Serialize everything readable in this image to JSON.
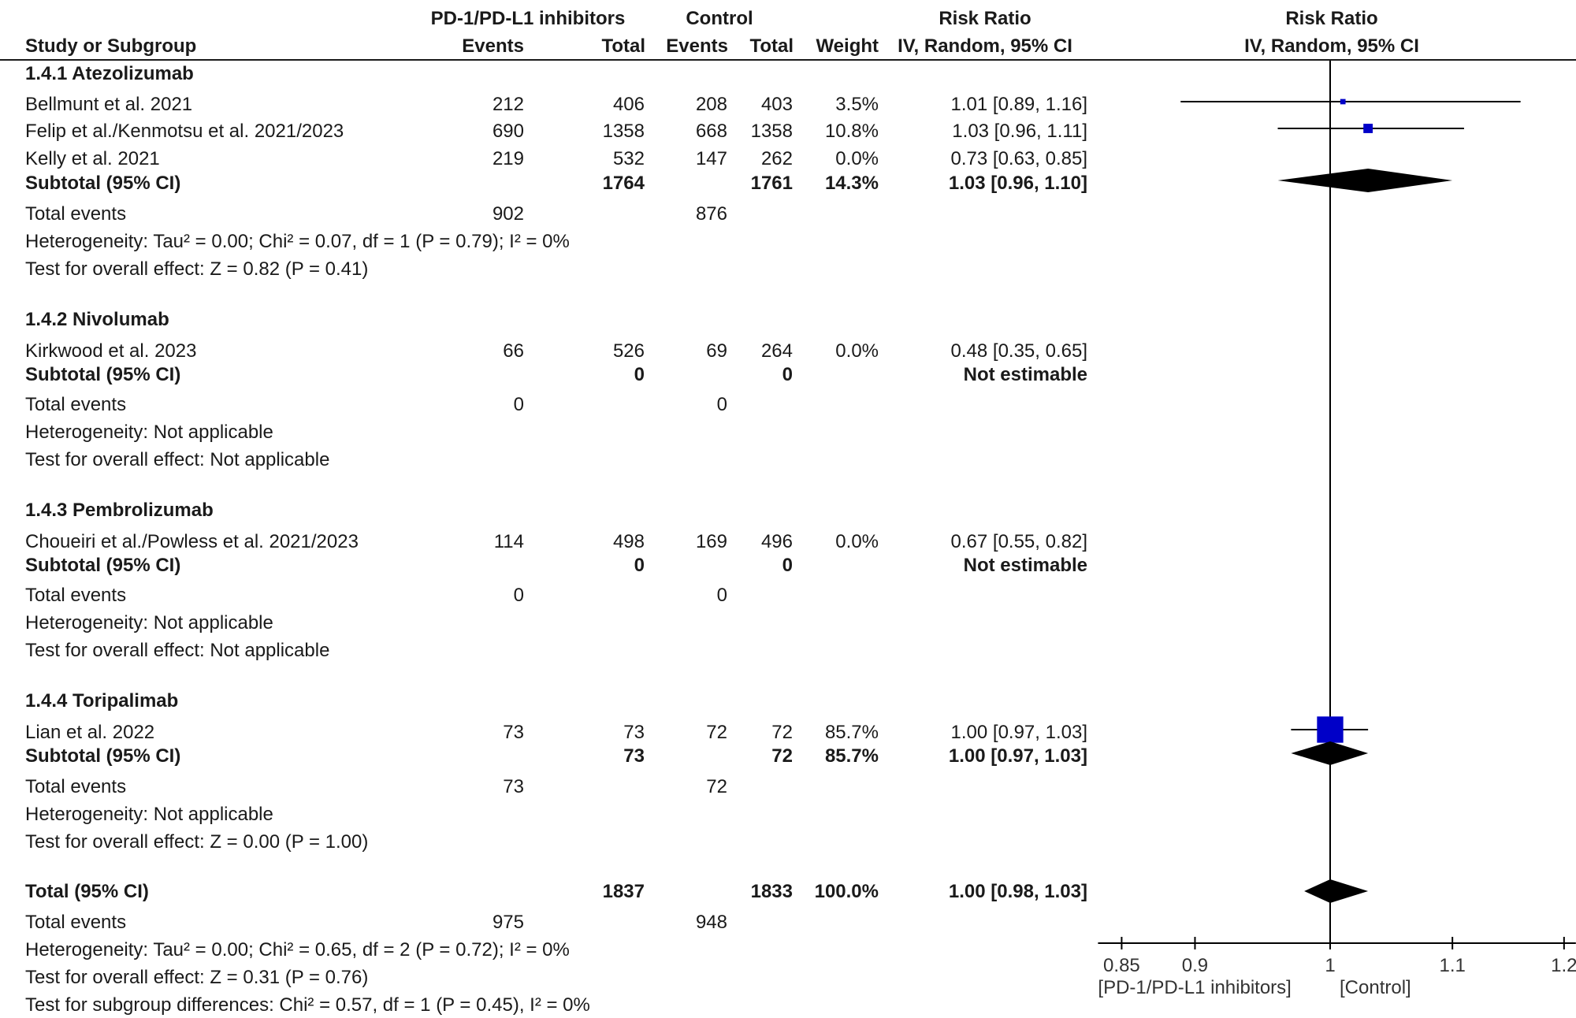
{
  "header": {
    "group1": "PD-1/PD-L1 inhibitors",
    "group2": "Control",
    "rr_title": "Risk Ratio",
    "rr_method": "IV, Random, 95% CI",
    "plot_title": "Risk Ratio",
    "plot_method": "IV, Random, 95% CI",
    "study_col": "Study or Subgroup",
    "events": "Events",
    "total": "Total",
    "events2": "Events",
    "total2": "Total",
    "weight": "Weight"
  },
  "subgroups": [
    {
      "title": "1.4.1 Atezolizumab",
      "studies": [
        {
          "name": "Bellmunt et al. 2021",
          "e1": "212",
          "n1": "406",
          "e2": "208",
          "n2": "403",
          "weight": "3.5%",
          "ci_text": "1.01 [0.89, 1.16]"
        },
        {
          "name": "Felip et al./Kenmotsu et al. 2021/2023",
          "e1": "690",
          "n1": "1358",
          "e2": "668",
          "n2": "1358",
          "weight": "10.8%",
          "ci_text": "1.03 [0.96, 1.11]"
        },
        {
          "name": "Kelly et al. 2021",
          "e1": "219",
          "n1": "532",
          "e2": "147",
          "n2": "262",
          "weight": "0.0%",
          "ci_text": "0.73 [0.63, 0.85]"
        }
      ],
      "subtotal": {
        "label": "Subtotal (95% CI)",
        "n1": "1764",
        "n2": "1761",
        "weight": "14.3%",
        "ci_text": "1.03 [0.96, 1.10]"
      },
      "total_events": {
        "label": "Total events",
        "e1": "902",
        "e2": "876"
      },
      "heterogeneity": "Heterogeneity: Tau² = 0.00; Chi² = 0.07, df = 1 (P = 0.79); I² = 0%",
      "overall": "Test for overall effect: Z = 0.82 (P = 0.41)"
    },
    {
      "title": "1.4.2 Nivolumab",
      "studies": [
        {
          "name": "Kirkwood et al. 2023",
          "e1": "66",
          "n1": "526",
          "e2": "69",
          "n2": "264",
          "weight": "0.0%",
          "ci_text": "0.48 [0.35, 0.65]"
        }
      ],
      "subtotal": {
        "label": "Subtotal (95% CI)",
        "n1": "0",
        "n2": "0",
        "weight": "",
        "ci_text": "Not estimable"
      },
      "total_events": {
        "label": "Total events",
        "e1": "0",
        "e2": "0"
      },
      "heterogeneity": "Heterogeneity: Not applicable",
      "overall": "Test for overall effect: Not applicable"
    },
    {
      "title": "1.4.3 Pembrolizumab",
      "studies": [
        {
          "name": "Choueiri et al./Powless et al. 2021/2023",
          "e1": "114",
          "n1": "498",
          "e2": "169",
          "n2": "496",
          "weight": "0.0%",
          "ci_text": "0.67 [0.55, 0.82]"
        }
      ],
      "subtotal": {
        "label": "Subtotal (95% CI)",
        "n1": "0",
        "n2": "0",
        "weight": "",
        "ci_text": "Not estimable"
      },
      "total_events": {
        "label": "Total events",
        "e1": "0",
        "e2": "0"
      },
      "heterogeneity": "Heterogeneity: Not applicable",
      "overall": "Test for overall effect: Not applicable"
    },
    {
      "title": "1.4.4 Toripalimab",
      "studies": [
        {
          "name": "Lian et al. 2022",
          "e1": "73",
          "n1": "73",
          "e2": "72",
          "n2": "72",
          "weight": "85.7%",
          "ci_text": "1.00 [0.97, 1.03]"
        }
      ],
      "subtotal": {
        "label": "Subtotal (95% CI)",
        "n1": "73",
        "n2": "72",
        "weight": "85.7%",
        "ci_text": "1.00 [0.97, 1.03]"
      },
      "total_events": {
        "label": "Total events",
        "e1": "73",
        "e2": "72"
      },
      "heterogeneity": "Heterogeneity: Not applicable",
      "overall": "Test for overall effect: Z = 0.00 (P = 1.00)"
    }
  ],
  "overall": {
    "label": "Total (95% CI)",
    "n1": "1837",
    "n2": "1833",
    "weight": "100.0%",
    "ci_text": "1.00 [0.98, 1.03]",
    "total_events": {
      "label": "Total events",
      "e1": "975",
      "e2": "948"
    },
    "heterogeneity": "Heterogeneity: Tau² = 0.00; Chi² = 0.65, df = 2 (P = 0.72); I² = 0%",
    "overall_effect": "Test for overall effect: Z = 0.31 (P = 0.76)",
    "subgroup_diff": "Test for subgroup differences: Chi² = 0.57, df = 1 (P = 0.45), I² = 0%"
  },
  "colors": {
    "study_marker": "#0000c8",
    "diamond": "#000000",
    "line": "#000000"
  },
  "chart_data": {
    "type": "scatter",
    "title": "Risk Ratio",
    "subtitle": "IV, Random, 95% CI",
    "xscale": "log",
    "xlim": [
      0.85,
      1.2
    ],
    "x_ticks": [
      "0.85",
      "0.9",
      "1",
      "1.1",
      "1.2"
    ],
    "x_tick_values": [
      0.85,
      0.9,
      1,
      1.1,
      1.2
    ],
    "xlabel_left": "[PD-1/PD-L1 inhibitors]",
    "xlabel_right": "[Control]",
    "null_line": 1,
    "studies": [
      {
        "name": "Bellmunt et al. 2021",
        "rr": 1.01,
        "lo": 0.89,
        "hi": 1.16,
        "weight": 3.5
      },
      {
        "name": "Felip et al./Kenmotsu et al. 2021/2023",
        "rr": 1.03,
        "lo": 0.96,
        "hi": 1.11,
        "weight": 10.8
      },
      {
        "name": "Lian et al. 2022",
        "rr": 1.0,
        "lo": 0.97,
        "hi": 1.03,
        "weight": 85.7
      }
    ],
    "diamonds": [
      {
        "name": "Subtotal 1.4.1",
        "rr": 1.03,
        "lo": 0.96,
        "hi": 1.1
      },
      {
        "name": "Subtotal 1.4.4",
        "rr": 1.0,
        "lo": 0.97,
        "hi": 1.03
      },
      {
        "name": "Total",
        "rr": 1.0,
        "lo": 0.98,
        "hi": 1.03
      }
    ]
  }
}
